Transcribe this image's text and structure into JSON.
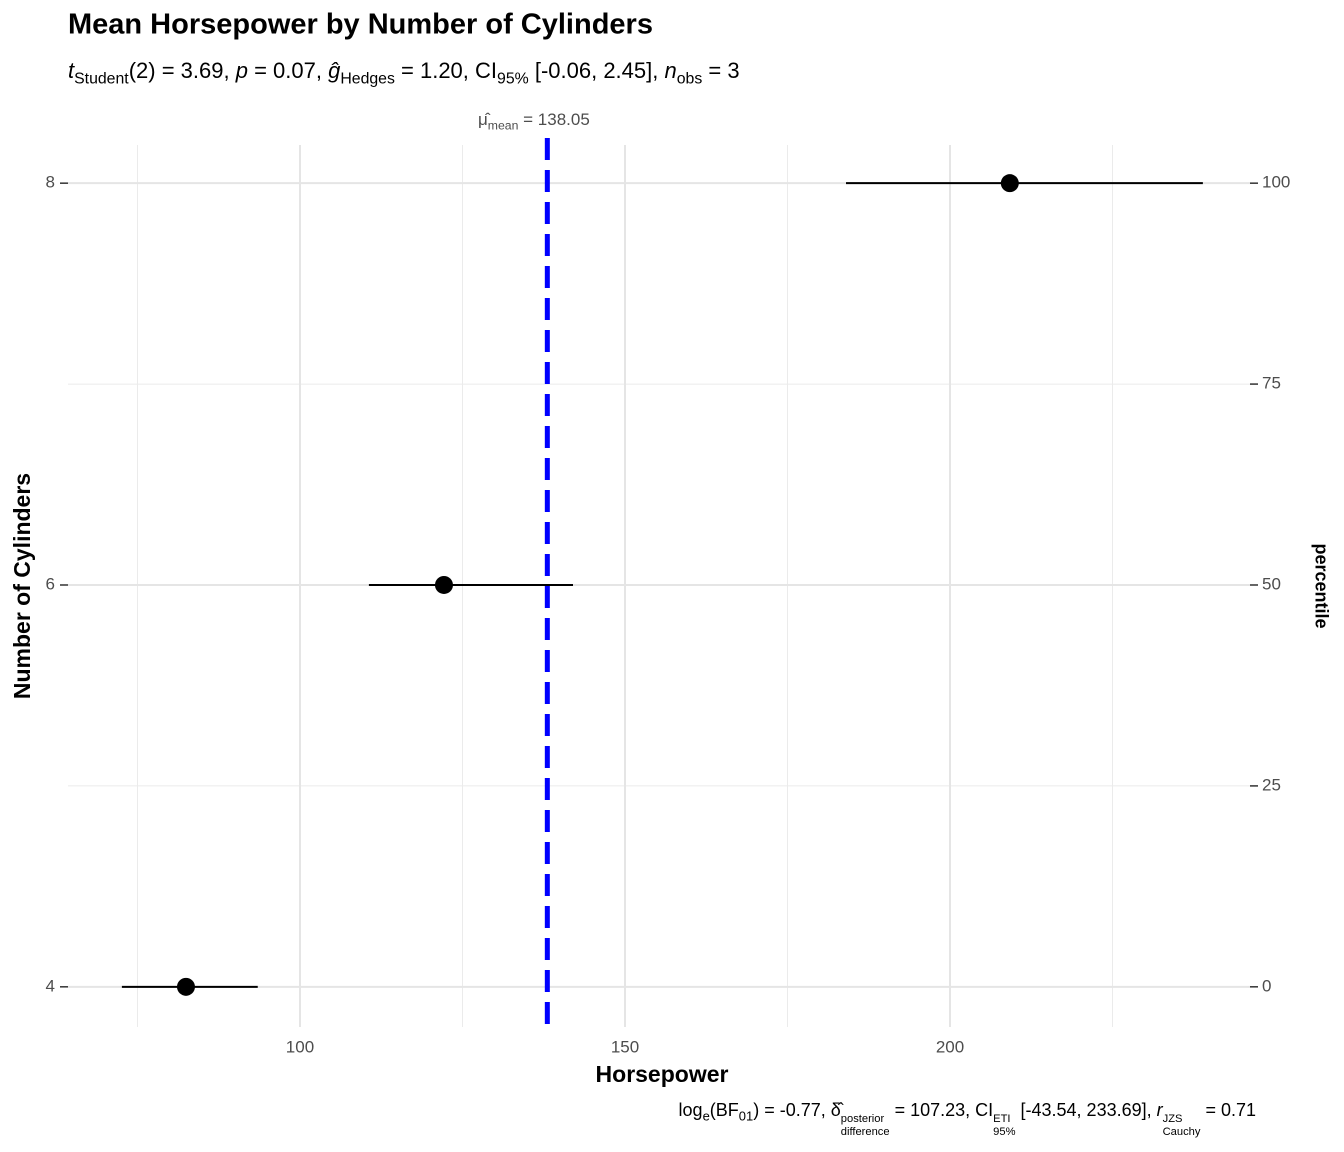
{
  "chart_data": {
    "type": "scatter",
    "title": "Mean Horsepower by Number of Cylinders",
    "subtitle": [
      "t",
      "Student",
      "(2) = 3.69, ",
      "p",
      " = 0.07, ",
      "ĝ",
      "Hedges",
      " = 1.20, CI",
      "95%",
      " [-0.06, 2.45], ",
      "n",
      "obs",
      " = 3"
    ],
    "caption": [
      "log",
      "e",
      "(BF",
      "01",
      ") = -0.77, ",
      "δ̂",
      "posterior",
      "difference",
      " = 107.23, CI",
      "ETI",
      "95%",
      " [-43.54, 233.69], ",
      "r",
      "JZS",
      "Cauchy",
      " = 0.71"
    ],
    "x_label": "Horsepower",
    "y_label": "Number of Cylinders",
    "y2_label": "percentile",
    "series": [
      {
        "color": "#000000",
        "x": [
          82.46,
          122.15,
          209.2
        ],
        "y": [
          4,
          6,
          8
        ],
        "xmin": [
          72.6,
          110.6,
          184.0
        ],
        "xmax": [
          93.5,
          142.0,
          238.9
        ]
      }
    ],
    "mean_line": {
      "value": 138.05,
      "symbol": "μ̂",
      "subscript": "mean",
      "label": " = 138.05",
      "color": "#0000ff"
    },
    "xlim": [
      64.31,
      246.15
    ],
    "xticks": [
      100,
      150,
      200
    ],
    "ylim": [
      3.8,
      8.19
    ],
    "yticks": [
      4,
      6,
      8
    ],
    "y2lim": [
      -5,
      104.75
    ],
    "y2ticks": [
      0,
      25,
      50,
      75,
      100
    ],
    "grid": true
  }
}
